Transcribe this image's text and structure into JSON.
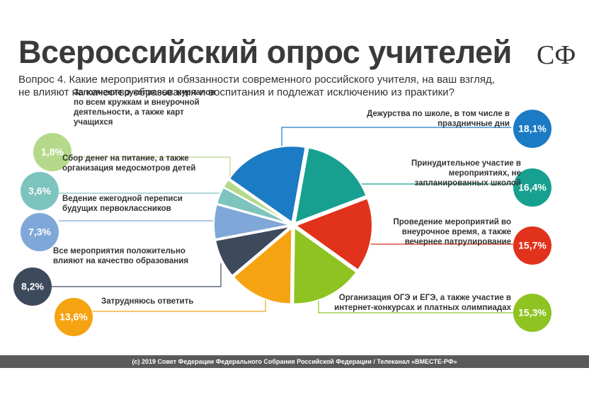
{
  "chart_data": {
    "type": "pie",
    "title": "Всероссийский опрос учителей",
    "logo": "СФ",
    "subtitle": "Вопрос 4. Какие мероприятия и обязанности современного российского учителя, на ваш взгляд, не влияют на качество образования и воспитания и подлежат исключению из практики?",
    "categories": [
      "Дежурства по школе, в том числе в праздничные дни",
      "Принудительное участие в мероприятиях, не запланированных школой",
      "Проведение мероприятий во внеурочное время, а также вечернее патрулирование",
      "Организация ОГЭ и ЕГЭ, а также участие в интернет-конкурсах и платных олимпиадах",
      "Затрудняюсь ответить",
      "Все мероприятия положительно влияют на качество образования",
      "Ведение ежегодной переписи будущих первоклассников",
      "Сбор денег на питание, а также организация медосмотров детей",
      "Заполнение рукописных журналов по всем кружкам и внеурочной деятельности, а также карт учащихся"
    ],
    "values": [
      18.1,
      16.4,
      15.7,
      15.3,
      13.6,
      8.2,
      7.3,
      3.6,
      1.8
    ],
    "value_labels": [
      "18,1%",
      "16,4%",
      "15,7%",
      "15,3%",
      "13,6%",
      "8,2%",
      "7,3%",
      "3,6%",
      "1,8%"
    ],
    "colors": [
      "#1b7bc4",
      "#17a08f",
      "#e1321c",
      "#8ec321",
      "#f6a312",
      "#3d4a5c",
      "#7fa7d8",
      "#7dc4be",
      "#b5d98b"
    ],
    "footer": "(c) 2019 Совет Федерации Федерального Собрания Российской Федерации / Телеканал «ВМЕСТЕ-РФ»"
  }
}
